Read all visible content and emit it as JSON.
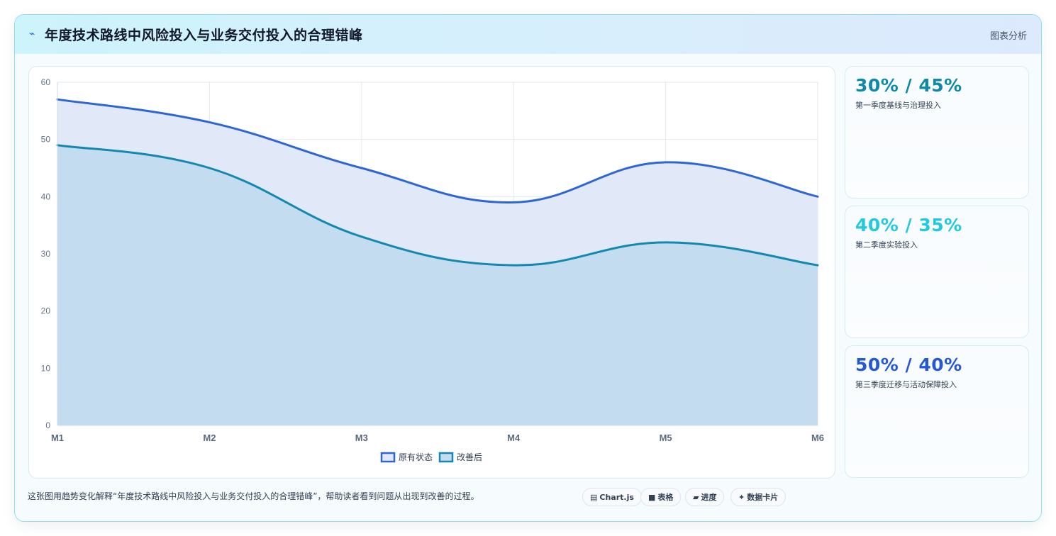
{
  "header": {
    "title": "年度技术路线中风险投入与业务交付投入的合理错峰",
    "tag": "图表分析",
    "icon": "lightning-icon"
  },
  "chart_data": {
    "type": "area",
    "x": [
      "M1",
      "M2",
      "M3",
      "M4",
      "M5",
      "M6"
    ],
    "series": [
      {
        "name": "原有状态",
        "values": [
          57,
          53,
          45,
          39,
          46,
          40
        ],
        "color": "#2f66d6",
        "fill": "#e1e9f9"
      },
      {
        "name": "改善后",
        "values": [
          49,
          45,
          33,
          28,
          32,
          28
        ],
        "color": "#1388b1",
        "fill": "#c4dcf0"
      }
    ],
    "ylim": [
      0,
      60
    ],
    "yticks": [
      0,
      10,
      20,
      30,
      40,
      50,
      60
    ],
    "grid": true,
    "legend": "bottom"
  },
  "stats": [
    {
      "value": "30% / 45%",
      "label": "第一季度基线与治理投入",
      "color": "#0e8aa8"
    },
    {
      "value": "40% / 35%",
      "label": "第二季度实验投入",
      "color": "#22c9e0"
    },
    {
      "value": "50% / 40%",
      "label": "第三季度迁移与活动保障投入",
      "color": "#2458d6"
    }
  ],
  "footer": {
    "text": "这张图用趋势变化解释“年度技术路线中风险投入与业务交付投入的合理错峰”，帮助读者看到问题从出现到改善的过程。",
    "pills": [
      {
        "icon": "▤",
        "label": "Chart.js"
      },
      {
        "icon": "■",
        "label": "表格"
      },
      {
        "icon": "▰",
        "label": "进度"
      },
      {
        "icon": "✦",
        "label": "数据卡片"
      }
    ]
  }
}
